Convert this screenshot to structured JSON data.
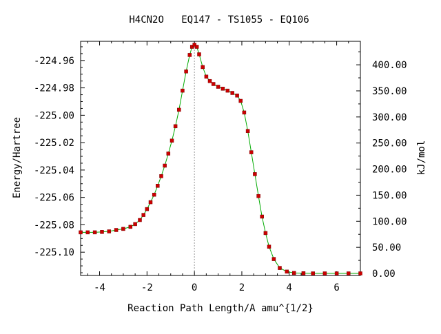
{
  "chart_data": {
    "type": "line",
    "title": "H4CN2O   EQ147 - TS1055 - EQ106",
    "xlabel": "Reaction Path Length/A amu^{1/2}",
    "ylabel": "Energy/Hartree",
    "y2label": "kJ/mol",
    "xlim": [
      -4.8,
      7.0
    ],
    "ylim": [
      -225.117,
      -224.946
    ],
    "x_ticks": [
      -4,
      -2,
      0,
      2,
      4,
      6
    ],
    "x_tick_labels": [
      "-4",
      "-2",
      "0",
      "2",
      "4",
      "6"
    ],
    "y_ticks": [
      -224.96,
      -224.98,
      -225.0,
      -225.02,
      -225.04,
      -225.06,
      -225.08,
      -225.1
    ],
    "y_tick_labels": [
      "-224.96",
      "-224.98",
      "-225.00",
      "-225.02",
      "-225.04",
      "-225.06",
      "-225.08",
      "-225.10"
    ],
    "y2_reference_hartree": -225.1155,
    "y2_kj_per_hartree": 2625.5,
    "y2_ticks": [
      0,
      50,
      100,
      150,
      200,
      250,
      300,
      350,
      400
    ],
    "y2_tick_labels": [
      "0.00",
      "50.00",
      "100.00",
      "150.00",
      "200.00",
      "250.00",
      "300.00",
      "350.00",
      "400.00"
    ],
    "ts_marker_x": 0,
    "line_color": "#00aa00",
    "point_color": "#cc0000",
    "ts_line_color": "#999999",
    "series": [
      {
        "x": [
          -4.8,
          -4.5,
          -4.2,
          -3.9,
          -3.6,
          -3.3,
          -3.0,
          -2.7,
          -2.5,
          -2.3,
          -2.15,
          -2.0,
          -1.85,
          -1.7,
          -1.55,
          -1.4,
          -1.25,
          -1.1,
          -0.95,
          -0.8,
          -0.65,
          -0.5,
          -0.35,
          -0.2,
          -0.1,
          0.0,
          0.1,
          0.2,
          0.35,
          0.5,
          0.65,
          0.8,
          1.0,
          1.2,
          1.4,
          1.6,
          1.8,
          1.95,
          2.1,
          2.25,
          2.4,
          2.55,
          2.7,
          2.85,
          3.0,
          3.15,
          3.35,
          3.6,
          3.9,
          4.2,
          4.6,
          5.0,
          5.5,
          6.0,
          6.5,
          7.0
        ],
        "y": [
          -225.0855,
          -225.0855,
          -225.0855,
          -225.0852,
          -225.0848,
          -225.0838,
          -225.083,
          -225.0815,
          -225.0795,
          -225.0765,
          -225.0728,
          -225.0685,
          -225.0635,
          -225.058,
          -225.0515,
          -225.0445,
          -225.0368,
          -225.028,
          -225.0185,
          -225.008,
          -224.996,
          -224.982,
          -224.968,
          -224.956,
          -224.95,
          -224.9485,
          -224.95,
          -224.9555,
          -224.9648,
          -224.9718,
          -224.975,
          -224.9772,
          -224.9792,
          -224.9806,
          -224.982,
          -224.9837,
          -224.9856,
          -224.9895,
          -224.998,
          -225.0115,
          -225.027,
          -225.043,
          -225.059,
          -225.074,
          -225.086,
          -225.096,
          -225.105,
          -225.1115,
          -225.1142,
          -225.1152,
          -225.1154,
          -225.1155,
          -225.1155,
          -225.1155,
          -225.1155,
          -225.1155
        ]
      }
    ]
  }
}
